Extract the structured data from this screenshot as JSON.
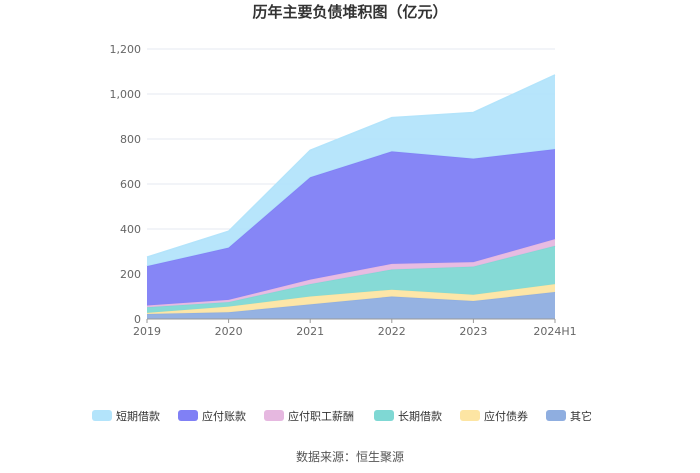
{
  "chart_data": {
    "type": "area",
    "stacked": true,
    "title": "历年主要负债堆积图（亿元）",
    "categories": [
      "2019",
      "2020",
      "2021",
      "2022",
      "2023",
      "2024H1"
    ],
    "ylim": [
      0,
      1200
    ],
    "yticks": [
      0,
      200,
      400,
      600,
      800,
      1000,
      1200
    ],
    "ytick_labels": [
      "0",
      "200",
      "400",
      "600",
      "800",
      "1,000",
      "1,200"
    ],
    "grid": true,
    "legend_position": "bottom",
    "series": [
      {
        "name": "其它",
        "color": "#8faee0",
        "values": [
          22,
          30,
          65,
          100,
          80,
          120
        ]
      },
      {
        "name": "应付债券",
        "color": "#fde5a3",
        "values": [
          5,
          25,
          35,
          30,
          28,
          35
        ]
      },
      {
        "name": "长期借款",
        "color": "#7fd8d4",
        "values": [
          25,
          20,
          55,
          90,
          125,
          170
        ]
      },
      {
        "name": "应付职工薪酬",
        "color": "#e6b8e0",
        "values": [
          8,
          10,
          20,
          25,
          20,
          30
        ]
      },
      {
        "name": "应付账款",
        "color": "#8080f5",
        "values": [
          175,
          232,
          455,
          500,
          460,
          400
        ]
      },
      {
        "name": "短期借款",
        "color": "#b3e4fb",
        "values": [
          40,
          73,
          120,
          150,
          205,
          330
        ]
      }
    ],
    "legend_order": [
      "短期借款",
      "应付账款",
      "应付职工薪酬",
      "长期借款",
      "应付债券",
      "其它"
    ],
    "source": "数据来源：恒生聚源"
  }
}
